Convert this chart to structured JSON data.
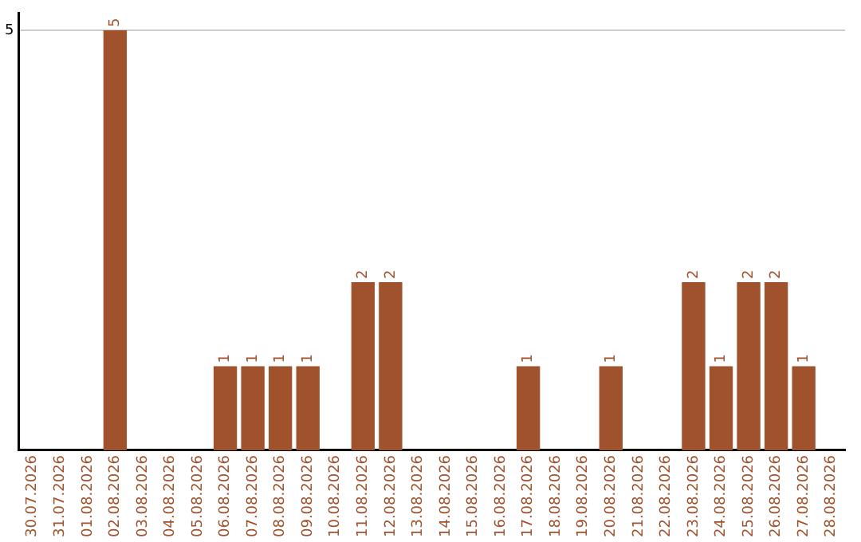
{
  "chart_data": {
    "type": "bar",
    "categories": [
      "30.07.2026",
      "31.07.2026",
      "01.08.2026",
      "02.08.2026",
      "03.08.2026",
      "04.08.2026",
      "05.08.2026",
      "06.08.2026",
      "07.08.2026",
      "08.08.2026",
      "09.08.2026",
      "10.08.2026",
      "11.08.2026",
      "12.08.2026",
      "13.08.2026",
      "14.08.2026",
      "15.08.2026",
      "16.08.2026",
      "17.08.2026",
      "18.08.2026",
      "19.08.2026",
      "20.08.2026",
      "21.08.2026",
      "22.08.2026",
      "23.08.2026",
      "24.08.2026",
      "25.08.2026",
      "26.08.2026",
      "27.08.2026",
      "28.08.2026"
    ],
    "values": [
      0,
      0,
      0,
      5,
      0,
      0,
      0,
      1,
      1,
      1,
      1,
      0,
      2,
      2,
      0,
      0,
      0,
      0,
      1,
      0,
      0,
      1,
      0,
      0,
      2,
      1,
      2,
      2,
      1,
      0
    ],
    "color": "#a0522d",
    "value_labels": [
      null,
      null,
      null,
      "5",
      null,
      null,
      null,
      "1",
      "1",
      "1",
      "1",
      null,
      "2",
      "2",
      null,
      null,
      null,
      null,
      "1",
      null,
      null,
      "1",
      null,
      null,
      "2",
      "1",
      "2",
      "2",
      "1",
      null
    ],
    "ylim": [
      0,
      5.2
    ],
    "yticks": [
      5
    ],
    "grid": "y"
  }
}
